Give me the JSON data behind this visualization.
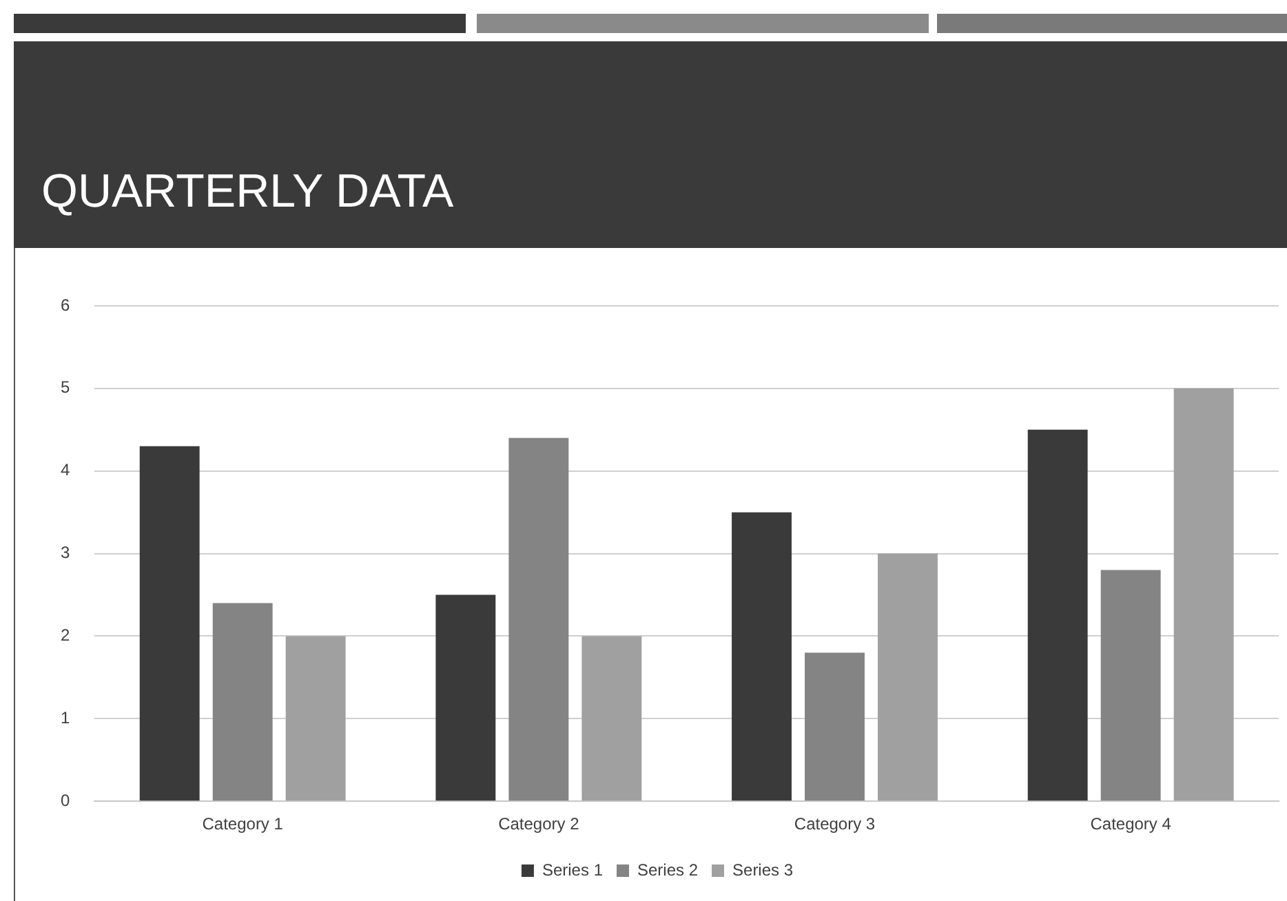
{
  "chart_data": {
    "type": "bar",
    "title": "QUARTERLY DATA",
    "categories": [
      "Category 1",
      "Category 2",
      "Category 3",
      "Category 4"
    ],
    "series": [
      {
        "name": "Series 1",
        "color": "#3a3a3a",
        "values": [
          4.3,
          2.5,
          3.5,
          4.5
        ]
      },
      {
        "name": "Series 2",
        "color": "#848484",
        "values": [
          2.4,
          4.4,
          1.8,
          2.8
        ]
      },
      {
        "name": "Series 3",
        "color": "#a0a0a0",
        "values": [
          2,
          2,
          3,
          5
        ]
      }
    ],
    "ylim": [
      0,
      6
    ],
    "yticks": [
      0,
      1,
      2,
      3,
      4,
      5,
      6
    ],
    "grid": "y",
    "legend": "bottom"
  }
}
